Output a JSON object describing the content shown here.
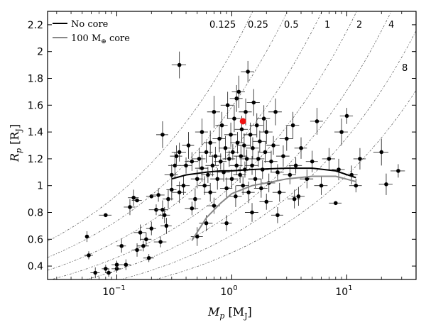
{
  "chart_data": {
    "type": "scatter",
    "xscale": "log",
    "xlim": [
      0.025,
      40
    ],
    "ylim": [
      0.3,
      2.3
    ],
    "xticks": [
      {
        "value": 0.1,
        "base": "10",
        "exp": "−1"
      },
      {
        "value": 1,
        "base": "10",
        "exp": "0"
      },
      {
        "value": 10,
        "base": "10",
        "exp": "1"
      }
    ],
    "yticks": [
      0.4,
      0.6,
      0.8,
      1,
      1.2,
      1.4,
      1.6,
      1.8,
      2,
      2.2
    ],
    "xlabel": {
      "main": "M",
      "sub": "p",
      "unit": "[M",
      "unit_sub": "J",
      "close": "]"
    },
    "ylabel": {
      "main": "R",
      "sub": "p",
      "unit": "[R",
      "unit_sub": "J",
      "close": "]"
    },
    "legend": {
      "position": "top-left",
      "entries": [
        {
          "label": "No core",
          "color": "#000000"
        },
        {
          "label": "100 M",
          "sub": "⊕",
          "suffix": " core",
          "color": "#888888"
        }
      ]
    },
    "density_labels": [
      "0.125",
      "0.25",
      "0.5",
      "1",
      "2",
      "4",
      "8"
    ],
    "density_values": [
      0.125,
      0.25,
      0.5,
      1,
      2,
      4,
      8
    ],
    "series": [
      {
        "name": "No core",
        "style": "line",
        "color": "#000000",
        "x": [
          0.3,
          0.4,
          0.6,
          0.8,
          1.0,
          1.5,
          2,
          3,
          5,
          8,
          12
        ],
        "y": [
          1.05,
          1.08,
          1.1,
          1.11,
          1.11,
          1.12,
          1.125,
          1.13,
          1.13,
          1.11,
          1.06
        ]
      },
      {
        "name": "100 M⊕ core",
        "style": "line",
        "color": "#888888",
        "x": [
          0.45,
          0.6,
          0.8,
          1.0,
          1.5,
          2,
          3,
          5,
          8,
          12
        ],
        "y": [
          0.59,
          0.76,
          0.87,
          0.94,
          1.0,
          1.02,
          1.05,
          1.07,
          1.07,
          1.03
        ]
      },
      {
        "name": "highlighted planet",
        "style": "point",
        "color": "#ee1111",
        "x": [
          1.25
        ],
        "y": [
          1.48
        ]
      },
      {
        "name": "planets",
        "style": "errorbar",
        "color": "#000000",
        "points": [
          [
            0.055,
            0.62,
            0,
            0.04
          ],
          [
            0.057,
            0.48,
            0.005,
            0.03
          ],
          [
            0.065,
            0.35,
            0.006,
            0.04
          ],
          [
            0.08,
            0.38,
            0.006,
            0.03
          ],
          [
            0.085,
            0.35,
            0.006,
            0.03
          ],
          [
            0.1,
            0.38,
            0.01,
            0.03
          ],
          [
            0.08,
            0.78,
            0.01,
            0
          ],
          [
            0.1,
            0.41,
            0.01,
            0.03
          ],
          [
            0.12,
            0.41,
            0.012,
            0.04
          ],
          [
            0.11,
            0.55,
            0.01,
            0.05
          ],
          [
            0.13,
            0.84,
            0.015,
            0.06
          ],
          [
            0.14,
            0.91,
            0.015,
            0.06
          ],
          [
            0.15,
            0.89,
            0.015,
            0
          ],
          [
            0.16,
            0.65,
            0.02,
            0.06
          ],
          [
            0.17,
            0.55,
            0.02,
            0.04
          ],
          [
            0.19,
            0.46,
            0.02,
            0.03
          ],
          [
            0.2,
            0.68,
            0.02,
            0.05
          ],
          [
            0.22,
            0.82,
            0.03,
            0.04
          ],
          [
            0.2,
            0.92,
            0.02,
            0
          ],
          [
            0.23,
            0.93,
            0.03,
            0.05
          ],
          [
            0.24,
            0.58,
            0.03,
            0.04
          ],
          [
            0.25,
            0.82,
            0.03,
            0.07
          ],
          [
            0.26,
            0.78,
            0.03,
            0.06
          ],
          [
            0.28,
            0.9,
            0.03,
            0.07
          ],
          [
            0.3,
            0.97,
            0.03,
            0.08
          ],
          [
            0.3,
            1.08,
            0.04,
            0.08
          ],
          [
            0.32,
            1.15,
            0.04,
            0.1
          ],
          [
            0.33,
            1.22,
            0.04,
            0.08
          ],
          [
            0.35,
            1.25,
            0.05,
            0.07
          ],
          [
            0.35,
            0.95,
            0.05,
            0.08
          ],
          [
            0.38,
            1.0,
            0.05,
            0.07
          ],
          [
            0.4,
            1.15,
            0.05,
            0.06
          ],
          [
            0.42,
            1.3,
            0.05,
            0.1
          ],
          [
            0.45,
            1.18,
            0.06,
            0.07
          ],
          [
            0.45,
            0.83,
            0.06,
            0.05
          ],
          [
            0.48,
            0.9,
            0.06,
            0.08
          ],
          [
            0.5,
            1.05,
            0.06,
            0.07
          ],
          [
            0.52,
            1.2,
            0.07,
            0.08
          ],
          [
            0.55,
            1.13,
            0.07,
            0.1
          ],
          [
            0.55,
            1.4,
            0.07,
            0.1
          ],
          [
            0.58,
            1.0,
            0.07,
            0.07
          ],
          [
            0.6,
            1.25,
            0.08,
            0.08
          ],
          [
            0.62,
            1.08,
            0.08,
            0.06
          ],
          [
            0.65,
            1.32,
            0.08,
            0.09
          ],
          [
            0.65,
            0.95,
            0.08,
            0.07
          ],
          [
            0.68,
            1.15,
            0.09,
            0.08
          ],
          [
            0.7,
            1.55,
            0.09,
            0.12
          ],
          [
            0.72,
            1.22,
            0.09,
            0.07
          ],
          [
            0.75,
            1.05,
            0.1,
            0.08
          ],
          [
            0.78,
            1.35,
            0.1,
            0.1
          ],
          [
            0.8,
            1.18,
            0.1,
            0.06
          ],
          [
            0.82,
            1.45,
            0.1,
            0.1
          ],
          [
            0.85,
            1.1,
            0.11,
            0.07
          ],
          [
            0.88,
            1.28,
            0.11,
            0.09
          ],
          [
            0.9,
            0.98,
            0.11,
            0.08
          ],
          [
            0.92,
            1.6,
            0.12,
            0.1
          ],
          [
            0.95,
            1.2,
            0.12,
            0.06
          ],
          [
            0.98,
            1.38,
            0.12,
            0.09
          ],
          [
            1.0,
            1.05,
            0.13,
            0.07
          ],
          [
            1.02,
            1.25,
            0.13,
            0.06
          ],
          [
            1.05,
            1.5,
            0.14,
            0.1
          ],
          [
            1.08,
            0.92,
            0.14,
            0.08
          ],
          [
            1.1,
            1.15,
            0.14,
            0.07
          ],
          [
            1.12,
            1.32,
            0.15,
            0.08
          ],
          [
            1.15,
            1.7,
            0.15,
            0.12
          ],
          [
            1.18,
            1.08,
            0.15,
            0.06
          ],
          [
            1.2,
            1.22,
            0.16,
            0.08
          ],
          [
            1.22,
            1.42,
            0.16,
            0.1
          ],
          [
            1.25,
            1.0,
            0.16,
            0.07
          ],
          [
            1.28,
            1.3,
            0.17,
            0.09
          ],
          [
            1.3,
            1.12,
            0.17,
            0.06
          ],
          [
            1.32,
            1.55,
            0.17,
            0.1
          ],
          [
            1.35,
            1.2,
            0.18,
            0.07
          ],
          [
            1.38,
            1.85,
            0.18,
            0.08
          ],
          [
            1.4,
            0.95,
            0.18,
            0.08
          ],
          [
            1.45,
            1.38,
            0.19,
            0.09
          ],
          [
            1.5,
            1.15,
            0.2,
            0.07
          ],
          [
            1.52,
            1.28,
            0.2,
            0.08
          ],
          [
            1.55,
            1.62,
            0.2,
            0.1
          ],
          [
            1.6,
            1.05,
            0.21,
            0.07
          ],
          [
            1.65,
            1.45,
            0.22,
            0.09
          ],
          [
            1.7,
            1.2,
            0.22,
            0.06
          ],
          [
            1.75,
            1.33,
            0.23,
            0.08
          ],
          [
            1.8,
            0.98,
            0.24,
            0.07
          ],
          [
            1.85,
            1.12,
            0.24,
            0.07
          ],
          [
            1.9,
            1.5,
            0.25,
            0.1
          ],
          [
            1.95,
            1.25,
            0.26,
            0.08
          ],
          [
            2.0,
            1.4,
            0.26,
            0.09
          ],
          [
            2.1,
            1.02,
            0.28,
            0.07
          ],
          [
            2.2,
            1.18,
            0.29,
            0.08
          ],
          [
            2.3,
            1.3,
            0.3,
            0.07
          ],
          [
            2.4,
            1.55,
            0.32,
            0.1
          ],
          [
            2.5,
            1.1,
            0.33,
            0.06
          ],
          [
            2.6,
            0.95,
            0.34,
            0.07
          ],
          [
            2.8,
            1.22,
            0.37,
            0.08
          ],
          [
            3.0,
            1.35,
            0.4,
            0.09
          ],
          [
            3.2,
            1.08,
            0.42,
            0.07
          ],
          [
            3.4,
            1.45,
            0.45,
            0.1
          ],
          [
            3.6,
            1.15,
            0.47,
            0.06
          ],
          [
            3.8,
            0.92,
            0.5,
            0.07
          ],
          [
            4.0,
            1.28,
            0.5,
            0.08
          ],
          [
            4.5,
            1.05,
            0.6,
            0.07
          ],
          [
            5.0,
            1.18,
            0.6,
            0.08
          ],
          [
            5.5,
            1.48,
            0.7,
            0.1
          ],
          [
            6.0,
            1.0,
            0.8,
            0.07
          ],
          [
            7.0,
            1.2,
            0.9,
            0.08
          ],
          [
            8.0,
            0.87,
            1.0,
            0
          ],
          [
            8.5,
            1.12,
            1.1,
            0.08
          ],
          [
            9.0,
            1.4,
            1.2,
            0.1
          ],
          [
            10.0,
            1.52,
            1.3,
            0.06
          ],
          [
            11.0,
            1.08,
            1.4,
            0.07
          ],
          [
            12.0,
            1.0,
            1.5,
            0.05
          ],
          [
            13.0,
            1.2,
            1.6,
            0.08
          ],
          [
            20.0,
            1.25,
            3,
            0.1
          ],
          [
            22.0,
            1.01,
            3,
            0.08
          ],
          [
            28.0,
            1.11,
            4,
            0.05
          ],
          [
            0.35,
            1.9,
            0.05,
            0.1
          ],
          [
            0.25,
            1.38,
            0.03,
            0.1
          ],
          [
            0.6,
            0.72,
            0.08,
            0.06
          ],
          [
            0.9,
            0.72,
            0.1,
            0.06
          ],
          [
            1.5,
            0.8,
            0.2,
            0.07
          ],
          [
            2.0,
            0.88,
            0.26,
            0.06
          ],
          [
            2.5,
            0.78,
            0.3,
            0.06
          ],
          [
            3.5,
            0.9,
            0.45,
            0.07
          ],
          [
            0.5,
            0.62,
            0.06,
            0.07
          ],
          [
            1.1,
            1.65,
            0.14,
            0.1
          ],
          [
            0.7,
            0.85,
            0.09,
            0.06
          ],
          [
            0.27,
            0.7,
            0.03,
            0.06
          ],
          [
            0.15,
            0.52,
            0.015,
            0.05
          ],
          [
            0.18,
            0.6,
            0.02,
            0.05
          ]
        ]
      }
    ]
  }
}
